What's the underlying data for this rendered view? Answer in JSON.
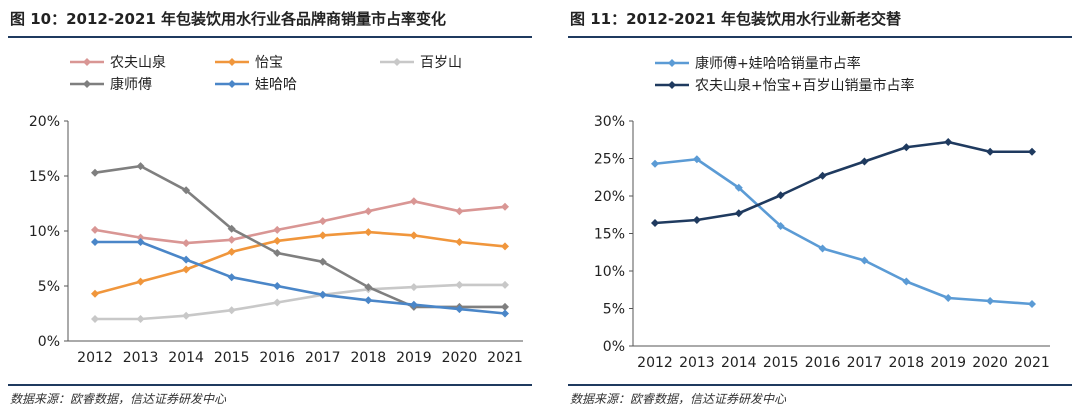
{
  "chart_data": [
    {
      "type": "line",
      "title": "图 10：2012-2021 年包装饮用水行业各品牌商销量市占率变化",
      "source": "数据来源：欧睿数据，信达证券研发中心",
      "x": [
        "2012",
        "2013",
        "2014",
        "2015",
        "2016",
        "2017",
        "2018",
        "2019",
        "2020",
        "2021"
      ],
      "ylim": [
        0,
        20
      ],
      "yticks": [
        "0%",
        "5%",
        "10%",
        "15%",
        "20%"
      ],
      "grid": false,
      "legend": "top",
      "series": [
        {
          "name": "农夫山泉",
          "color": "#d99694",
          "values": [
            10.1,
            9.4,
            8.9,
            9.2,
            10.1,
            10.9,
            11.8,
            12.7,
            11.8,
            12.2
          ]
        },
        {
          "name": "怡宝",
          "color": "#f0963c",
          "values": [
            4.3,
            5.4,
            6.5,
            8.1,
            9.1,
            9.6,
            9.9,
            9.6,
            9.0,
            8.6
          ]
        },
        {
          "name": "百岁山",
          "color": "#c8c8c8",
          "values": [
            2.0,
            2.0,
            2.3,
            2.8,
            3.5,
            4.2,
            4.7,
            4.9,
            5.1,
            5.1
          ]
        },
        {
          "name": "康师傅",
          "color": "#7f7f7f",
          "values": [
            15.3,
            15.9,
            13.7,
            10.2,
            8.0,
            7.2,
            4.9,
            3.1,
            3.1,
            3.1
          ]
        },
        {
          "name": "娃哈哈",
          "color": "#4a86c8",
          "values": [
            9.0,
            9.0,
            7.4,
            5.8,
            5.0,
            4.2,
            3.7,
            3.3,
            2.9,
            2.5
          ]
        }
      ]
    },
    {
      "type": "line",
      "title": "图 11：2012-2021 年包装饮用水行业新老交替",
      "source": "数据来源：欧睿数据，信达证券研发中心",
      "x": [
        "2012",
        "2013",
        "2014",
        "2015",
        "2016",
        "2017",
        "2018",
        "2019",
        "2020",
        "2021"
      ],
      "ylim": [
        0,
        30
      ],
      "yticks": [
        "0%",
        "5%",
        "10%",
        "15%",
        "20%",
        "25%",
        "30%"
      ],
      "grid": false,
      "legend": "top",
      "series": [
        {
          "name": "康师傅+娃哈哈销量市占率",
          "color": "#5b9bd5",
          "values": [
            24.3,
            24.9,
            21.1,
            16.0,
            13.0,
            11.4,
            8.6,
            6.4,
            6.0,
            5.6
          ]
        },
        {
          "name": "农夫山泉+怡宝+百岁山销量市占率",
          "color": "#1f3a5f",
          "values": [
            16.4,
            16.8,
            17.7,
            20.1,
            22.7,
            24.6,
            26.5,
            27.2,
            25.9,
            25.9
          ]
        }
      ]
    }
  ]
}
